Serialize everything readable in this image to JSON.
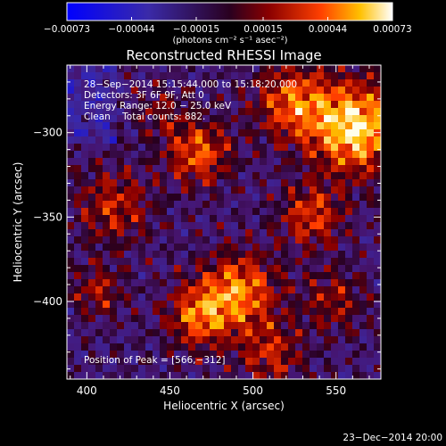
{
  "chart_data": {
    "type": "heatmap",
    "title": "Reconstructed RHESSI Image",
    "xlabel": "Heliocentric X (arcsec)",
    "ylabel": "Heliocentric Y (arcsec)",
    "xlim": [
      388,
      577
    ],
    "ylim": [
      -446,
      -260
    ],
    "x_ticks": [
      400,
      450,
      500,
      550
    ],
    "y_ticks": [
      -300,
      -350,
      -400
    ],
    "x_tick_labels": [
      "400",
      "450",
      "500",
      "550"
    ],
    "y_tick_labels": [
      "−300",
      "−350",
      "−400"
    ],
    "colorbar": {
      "range": [
        -0.00073,
        0.00073
      ],
      "tick_values": [
        -0.00073,
        -0.00044,
        -0.00015,
        0.00015,
        0.00044,
        0.00073
      ],
      "tick_labels": [
        "−0.00073",
        "−0.00044",
        "−0.00015",
        "0.00015",
        "0.00044",
        "0.00073"
      ],
      "units_label": "(photons cm⁻² s⁻¹ asec⁻²)"
    },
    "info_lines": [
      "28−Sep−2014 15:15:44.000 to 15:18:20.000",
      "Detectors: 3F 6F 9F, Att 0",
      "Energy Range: 12.0 − 25.0 keV",
      "Clean    Total counts: 882."
    ],
    "peak_label": "Position of Peak = [566,−312]",
    "peak": {
      "x": 566,
      "y": -312
    },
    "grid": false
  },
  "timestamp": "23−Dec−2014 20:00",
  "colors": {
    "background": "#000000",
    "text": "#ffffff"
  }
}
